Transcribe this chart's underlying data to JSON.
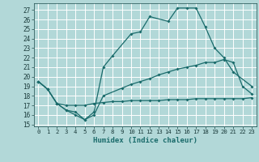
{
  "xlabel": "Humidex (Indice chaleur)",
  "bg_color": "#b2d8d8",
  "grid_color": "#ffffff",
  "line_color": "#1a6b6b",
  "xlim": [
    -0.5,
    23.5
  ],
  "ylim": [
    14.8,
    27.7
  ],
  "yticks": [
    15,
    16,
    17,
    18,
    19,
    20,
    21,
    22,
    23,
    24,
    25,
    26,
    27
  ],
  "xticks": [
    0,
    1,
    2,
    3,
    4,
    5,
    6,
    7,
    8,
    9,
    10,
    11,
    12,
    13,
    14,
    15,
    16,
    17,
    18,
    19,
    20,
    21,
    22,
    23
  ],
  "line1_x": [
    0,
    1,
    2,
    3,
    4,
    5,
    6,
    7,
    8,
    10,
    11,
    12,
    14,
    15,
    16,
    17,
    18,
    19,
    20,
    21,
    23
  ],
  "line1_y": [
    19.5,
    18.7,
    17.2,
    16.5,
    16.3,
    15.5,
    16.3,
    21.0,
    22.2,
    24.5,
    24.7,
    26.3,
    25.8,
    27.2,
    27.2,
    27.2,
    25.2,
    23.0,
    22.0,
    20.5,
    19.0
  ],
  "line2_x": [
    0,
    1,
    2,
    3,
    4,
    5,
    6,
    7,
    9,
    10,
    11,
    12,
    13,
    14,
    15,
    16,
    17,
    18,
    19,
    20,
    21,
    22,
    23
  ],
  "line2_y": [
    19.5,
    18.7,
    17.2,
    16.5,
    16.0,
    15.5,
    16.0,
    18.0,
    18.8,
    19.2,
    19.5,
    19.8,
    20.2,
    20.5,
    20.8,
    21.0,
    21.2,
    21.5,
    21.5,
    21.8,
    21.5,
    19.0,
    18.2
  ],
  "line3_x": [
    0,
    1,
    2,
    3,
    4,
    5,
    6,
    7,
    8,
    9,
    10,
    11,
    12,
    13,
    14,
    15,
    16,
    17,
    18,
    19,
    20,
    21,
    22,
    23
  ],
  "line3_y": [
    19.5,
    18.7,
    17.2,
    17.0,
    17.0,
    17.0,
    17.2,
    17.3,
    17.4,
    17.4,
    17.5,
    17.5,
    17.5,
    17.5,
    17.6,
    17.6,
    17.6,
    17.7,
    17.7,
    17.7,
    17.7,
    17.7,
    17.7,
    17.8
  ]
}
